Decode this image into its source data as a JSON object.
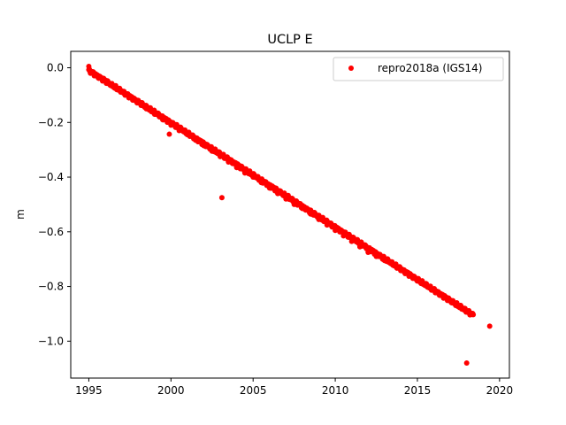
{
  "chart_data": {
    "type": "scatter",
    "title": "UCLP E",
    "xlabel": "",
    "ylabel": "m",
    "xlim": [
      1993.9,
      2020.6
    ],
    "ylim": [
      -1.135,
      0.06
    ],
    "x_ticks": [
      1995,
      2000,
      2005,
      2010,
      2015,
      2020
    ],
    "y_ticks": [
      0.0,
      -0.2,
      -0.4,
      -0.6,
      -0.8,
      -1.0
    ],
    "x_tick_labels": [
      "1995",
      "2000",
      "2005",
      "2010",
      "2015",
      "2020"
    ],
    "y_tick_labels": [
      "0.0",
      "−0.2",
      "−0.4",
      "−0.6",
      "−0.8",
      "−1.0"
    ],
    "grid": false,
    "legend_position": "top-right",
    "series": [
      {
        "name": "repro2018a (IGS14)",
        "color": "#ff0000",
        "marker": "circle",
        "trend": {
          "x_start": 1995.0,
          "y_start": -0.01,
          "x_end": 2018.4,
          "y_end": -0.905
        },
        "values": [
          [
            1995.0,
            0.005
          ],
          [
            1995.1,
            -0.012
          ],
          [
            1995.3,
            -0.02
          ],
          [
            1995.6,
            -0.03
          ],
          [
            1996.0,
            -0.045
          ],
          [
            1996.5,
            -0.065
          ],
          [
            1997.0,
            -0.085
          ],
          [
            1997.5,
            -0.105
          ],
          [
            1998.0,
            -0.125
          ],
          [
            1998.5,
            -0.15
          ],
          [
            1999.0,
            -0.17
          ],
          [
            1999.5,
            -0.19
          ],
          [
            2000.0,
            -0.21
          ],
          [
            2000.5,
            -0.23
          ],
          [
            2001.0,
            -0.245
          ],
          [
            2001.5,
            -0.265
          ],
          [
            2002.0,
            -0.285
          ],
          [
            2002.5,
            -0.305
          ],
          [
            2003.0,
            -0.325
          ],
          [
            2003.5,
            -0.345
          ],
          [
            2004.0,
            -0.365
          ],
          [
            2004.5,
            -0.385
          ],
          [
            2005.0,
            -0.4
          ],
          [
            2005.5,
            -0.42
          ],
          [
            2006.0,
            -0.44
          ],
          [
            2006.5,
            -0.46
          ],
          [
            2007.0,
            -0.48
          ],
          [
            2007.5,
            -0.5
          ],
          [
            2008.0,
            -0.515
          ],
          [
            2008.5,
            -0.535
          ],
          [
            2009.0,
            -0.555
          ],
          [
            2009.5,
            -0.575
          ],
          [
            2010.0,
            -0.595
          ],
          [
            2010.5,
            -0.615
          ],
          [
            2011.0,
            -0.635
          ],
          [
            2011.5,
            -0.655
          ],
          [
            2012.0,
            -0.675
          ],
          [
            2012.5,
            -0.69
          ],
          [
            2013.0,
            -0.705
          ],
          [
            2013.5,
            -0.72
          ],
          [
            2014.0,
            -0.735
          ],
          [
            2014.5,
            -0.755
          ],
          [
            2015.0,
            -0.775
          ],
          [
            2015.5,
            -0.79
          ],
          [
            2016.0,
            -0.81
          ],
          [
            2016.5,
            -0.83
          ],
          [
            2017.0,
            -0.85
          ],
          [
            2017.5,
            -0.87
          ],
          [
            2018.0,
            -0.89
          ],
          [
            2018.3,
            -0.9
          ],
          [
            2019.4,
            -0.945
          ]
        ],
        "outliers": [
          [
            1999.9,
            -0.243
          ],
          [
            2003.1,
            -0.475
          ],
          [
            2018.0,
            -1.08
          ]
        ]
      }
    ]
  }
}
